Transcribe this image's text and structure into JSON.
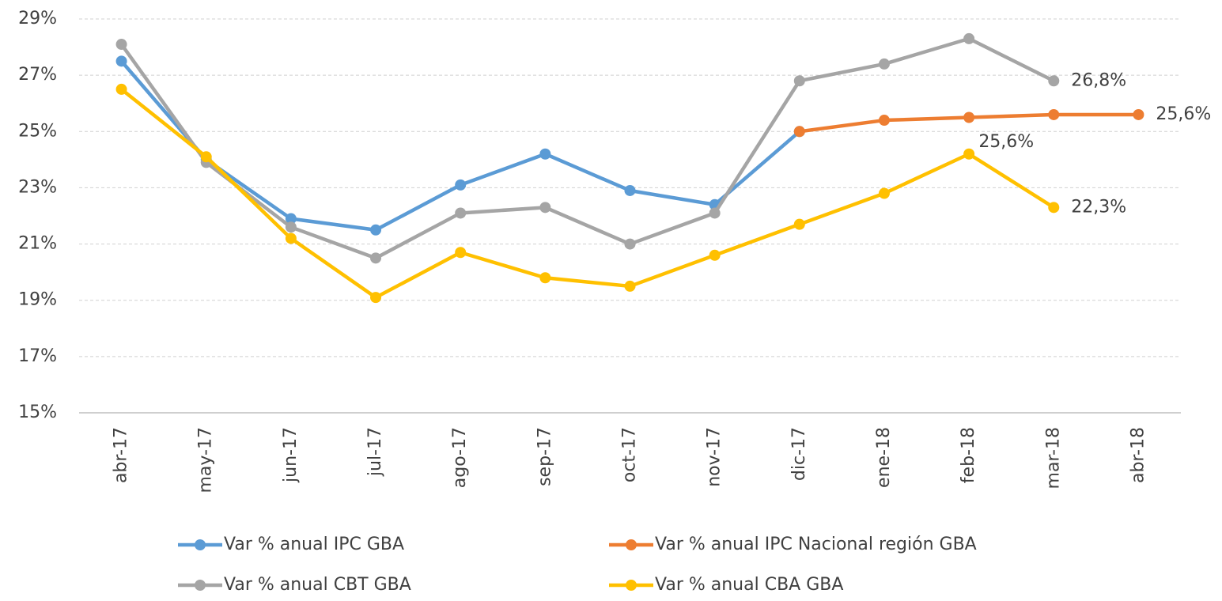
{
  "chart_data": {
    "type": "line",
    "categories": [
      "abr-17",
      "may-17",
      "jun-17",
      "jul-17",
      "ago-17",
      "sep-17",
      "oct-17",
      "nov-17",
      "dic-17",
      "ene-18",
      "feb-18",
      "mar-18",
      "abr-18"
    ],
    "series": [
      {
        "name": "Var % anual  IPC GBA",
        "color": "#5b9bd5",
        "values": [
          27.5,
          24.0,
          21.9,
          21.5,
          23.1,
          24.2,
          22.9,
          22.4,
          25.0,
          null,
          null,
          null,
          null
        ]
      },
      {
        "name": "Var % anual IPC Nacional región GBA",
        "color": "#ed7d31",
        "values": [
          null,
          null,
          null,
          null,
          null,
          null,
          null,
          null,
          25.0,
          25.4,
          25.5,
          25.6,
          25.6
        ],
        "value_labels": [
          null,
          null,
          null,
          null,
          null,
          null,
          null,
          null,
          null,
          null,
          null,
          "25,6%",
          "25,6%"
        ]
      },
      {
        "name": "Var % anual CBT GBA",
        "color": "#a5a5a5",
        "values": [
          28.1,
          23.9,
          21.6,
          20.5,
          22.1,
          22.3,
          21.0,
          22.1,
          26.8,
          27.4,
          28.3,
          26.8,
          null
        ],
        "value_labels": [
          null,
          null,
          null,
          null,
          null,
          null,
          null,
          null,
          null,
          null,
          null,
          "26,8%",
          null
        ]
      },
      {
        "name": "Var % anual  CBA GBA",
        "color": "#ffc000",
        "values": [
          26.5,
          24.1,
          21.2,
          19.1,
          20.7,
          19.8,
          19.5,
          20.6,
          21.7,
          22.8,
          24.2,
          22.3,
          null
        ],
        "value_labels": [
          null,
          null,
          null,
          null,
          null,
          null,
          null,
          null,
          null,
          null,
          null,
          "22,3%",
          null
        ]
      }
    ],
    "ylim": [
      15,
      29
    ],
    "yticks": [
      {
        "value": 15,
        "label": "15%"
      },
      {
        "value": 17,
        "label": "17%"
      },
      {
        "value": 19,
        "label": "19%"
      },
      {
        "value": 21,
        "label": "21%"
      },
      {
        "value": 23,
        "label": "23%"
      },
      {
        "value": 25,
        "label": "25%"
      },
      {
        "value": 27,
        "label": "27%"
      },
      {
        "value": 29,
        "label": "29%"
      }
    ],
    "grid": true
  }
}
